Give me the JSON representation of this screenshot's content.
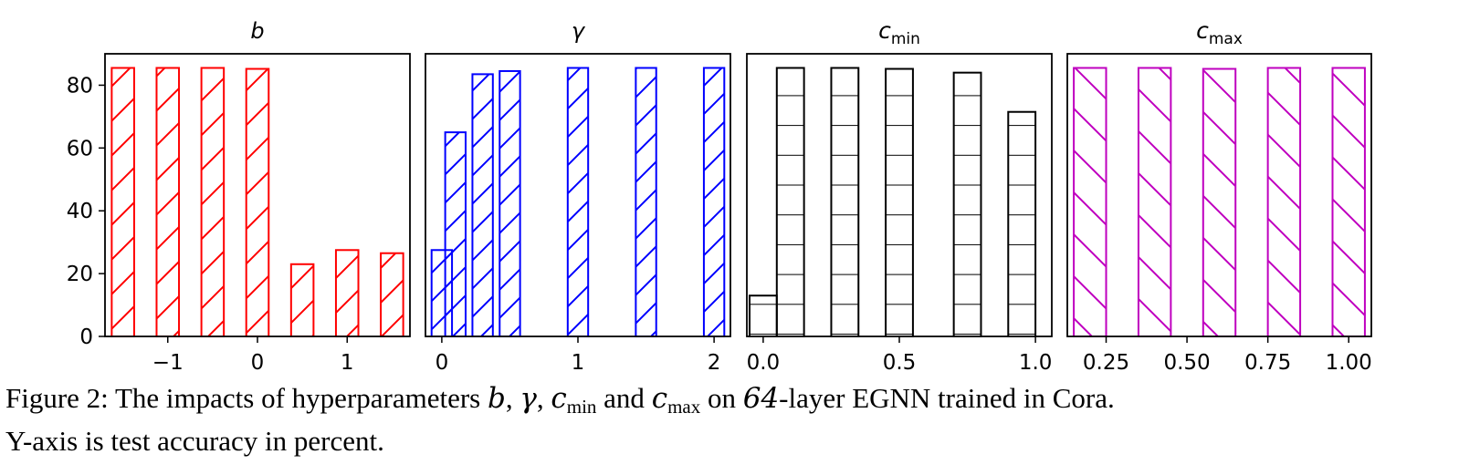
{
  "chart_data": [
    {
      "type": "bar",
      "title": "b",
      "color": "#ff0000",
      "hatch": "diagonal-up",
      "x": [
        -1.5,
        -1,
        -0.5,
        0,
        0.5,
        1,
        1.5
      ],
      "values": [
        85.5,
        85.5,
        85.5,
        85.2,
        23.0,
        27.5,
        26.5
      ],
      "xlim": [
        -1.7,
        1.7
      ],
      "ylim": [
        0,
        90
      ],
      "xticks": [
        -1,
        0,
        1
      ],
      "xtick_labels": [
        "−1",
        "0",
        "1"
      ],
      "yticks": [
        0,
        20,
        40,
        60,
        80
      ],
      "ytick_labels": [
        "0",
        "20",
        "40",
        "60",
        "80"
      ],
      "bar_width": 0.25
    },
    {
      "type": "bar",
      "title": "γ",
      "color": "#0000ff",
      "hatch": "diagonal-up-dense",
      "x": [
        0,
        0.1,
        0.3,
        0.5,
        1,
        1.5,
        2
      ],
      "values": [
        27.5,
        65.0,
        83.5,
        84.5,
        85.5,
        85.5,
        85.5
      ],
      "xlim": [
        -0.12,
        2.12
      ],
      "ylim": [
        0,
        90
      ],
      "xticks": [
        0,
        1,
        2
      ],
      "xtick_labels": [
        "0",
        "1",
        "2"
      ],
      "bar_width": 0.15
    },
    {
      "type": "bar",
      "title_base": "c",
      "title_sub": "min",
      "color": "#000000",
      "hatch": "horizontal",
      "x": [
        0.0,
        0.1,
        0.3,
        0.5,
        0.75,
        0.95
      ],
      "values": [
        13.0,
        85.5,
        85.5,
        85.2,
        84.0,
        71.5
      ],
      "xlim": [
        -0.06,
        1.06
      ],
      "ylim": [
        0,
        90
      ],
      "xticks": [
        0.0,
        0.5,
        1.0
      ],
      "xtick_labels": [
        "0.0",
        "0.5",
        "1.0"
      ],
      "bar_width": 0.1
    },
    {
      "type": "bar",
      "title_base": "c",
      "title_sub": "max",
      "color": "#bf00bf",
      "hatch": "diagonal-down",
      "x": [
        0.2,
        0.4,
        0.6,
        0.8,
        1.0
      ],
      "values": [
        85.5,
        85.5,
        85.2,
        85.5,
        85.5
      ],
      "xlim": [
        0.13,
        1.07
      ],
      "ylim": [
        0,
        90
      ],
      "xticks": [
        0.25,
        0.5,
        0.75,
        1.0
      ],
      "xtick_labels": [
        "0.25",
        "0.50",
        "0.75",
        "1.00"
      ],
      "bar_width": 0.1
    }
  ],
  "caption": {
    "prefix": "Figure 2: The impacts of hyperparameters ",
    "b": "b",
    "comma1": ", ",
    "gamma": "γ",
    "comma2": ", ",
    "cmin_base": "c",
    "cmin_sub": "min",
    "and": " and ",
    "cmax_base": "c",
    "cmax_sub": "max",
    "on": " on ",
    "layers": "64",
    "rest": "-layer EGNN trained in Cora.",
    "line2": "Y-axis is test accuracy in percent."
  }
}
